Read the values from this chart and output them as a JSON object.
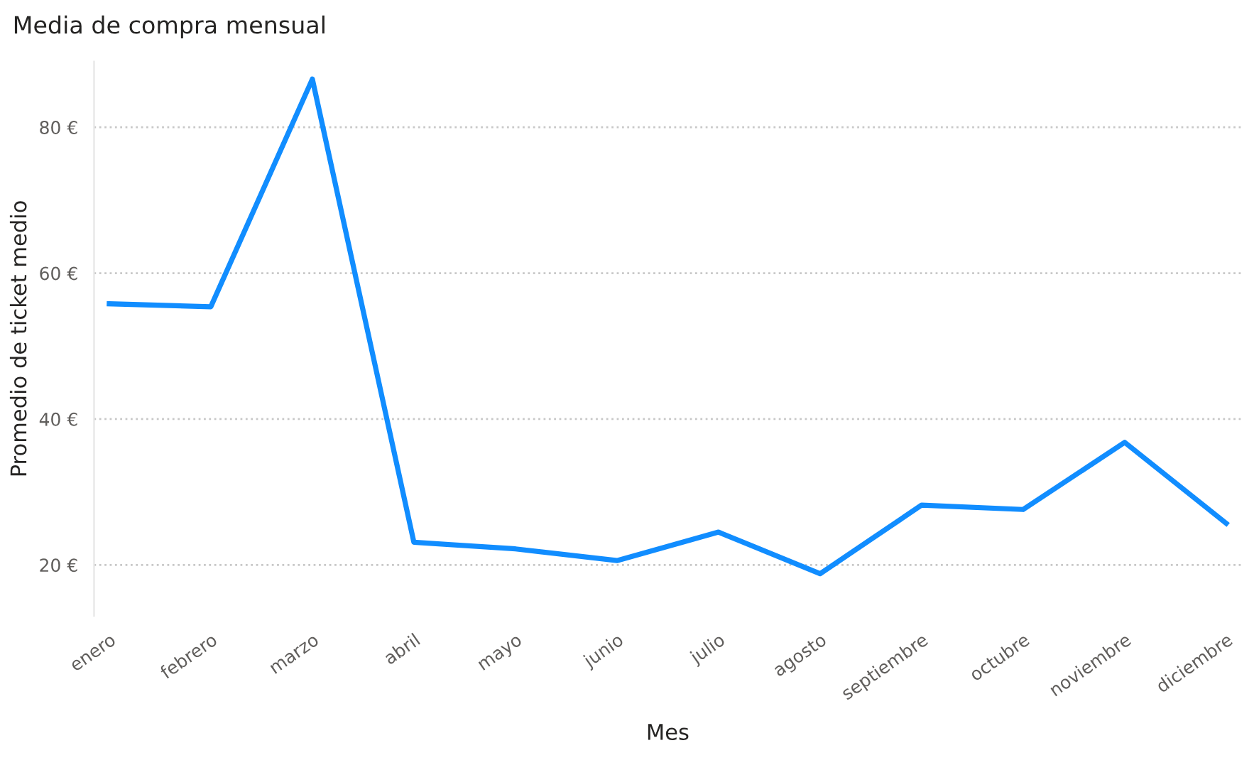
{
  "chart_data": {
    "type": "line",
    "title": "Media de compra mensual",
    "xlabel": "Mes",
    "ylabel": "Promedio de ticket medio",
    "categories": [
      "enero",
      "febrero",
      "marzo",
      "abril",
      "mayo",
      "junio",
      "julio",
      "agosto",
      "septiembre",
      "octubre",
      "noviembre",
      "diciembre"
    ],
    "series": [
      {
        "color": "#118dff",
        "values": [
          55.8,
          55.4,
          86.6,
          23.1,
          22.2,
          20.6,
          24.5,
          18.8,
          28.2,
          27.6,
          36.8,
          25.7
        ]
      }
    ],
    "ylim": [
      13,
      89
    ],
    "yticks": [
      {
        "value": 20,
        "label": "20 €"
      },
      {
        "value": 40,
        "label": "40 €"
      },
      {
        "value": 60,
        "label": "60 €"
      },
      {
        "value": 80,
        "label": "80 €"
      }
    ],
    "grid": "y",
    "line_style": "solid",
    "legend": false
  }
}
